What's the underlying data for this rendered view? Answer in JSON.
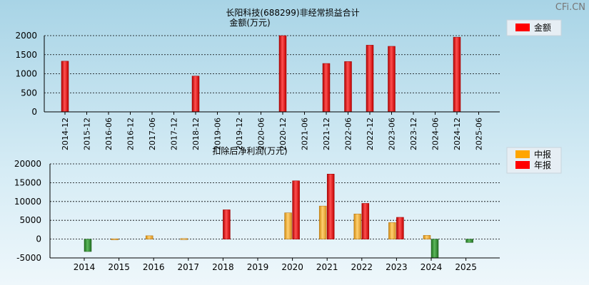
{
  "watermark": "CFi.CN",
  "chart_data": [
    {
      "type": "bar",
      "title": "长阳科技(688299)非经常损益合计",
      "subtitle": "金额(万元)",
      "categories": [
        "2014-12",
        "2015-12",
        "2016-06",
        "2016-12",
        "2017-06",
        "2017-12",
        "2018-12",
        "2019-06",
        "2019-12",
        "2020-06",
        "2020-12",
        "2021-06",
        "2021-12",
        "2022-06",
        "2022-12",
        "2023-06",
        "2023-12",
        "2024-06",
        "2024-12",
        "2025-06"
      ],
      "series": [
        {
          "name": "金额",
          "color": "#ff0000",
          "values": [
            1330,
            0,
            0,
            0,
            0,
            0,
            940,
            0,
            0,
            0,
            2000,
            0,
            1270,
            1320,
            1750,
            1720,
            0,
            0,
            1960,
            0
          ]
        }
      ],
      "yticks": [
        0,
        500,
        1000,
        1500,
        2000
      ],
      "ylim": [
        0,
        2000
      ],
      "legend": [
        "金额"
      ],
      "legend_position": "top-right",
      "grid": true
    },
    {
      "type": "bar",
      "title": "扣除后净利润(万元)",
      "categories": [
        "2014",
        "2015",
        "2016",
        "2017",
        "2018",
        "2019",
        "2020",
        "2021",
        "2022",
        "2023",
        "2024",
        "2025"
      ],
      "series": [
        {
          "name": "中报",
          "color": "#ffa500",
          "values": [
            null,
            100,
            900,
            150,
            null,
            null,
            7000,
            8800,
            6700,
            4400,
            1000,
            null
          ]
        },
        {
          "name": "年报",
          "color": "#ff0000",
          "values": [
            -3300,
            null,
            null,
            null,
            7800,
            null,
            15500,
            17300,
            9500,
            5800,
            -5000,
            -900
          ]
        }
      ],
      "yticks": [
        -5000,
        0,
        5000,
        10000,
        15000,
        20000
      ],
      "ylim": [
        -5000,
        20000
      ],
      "legend": [
        "中报",
        "年报"
      ],
      "legend_position": "top-right",
      "grid": true
    }
  ]
}
